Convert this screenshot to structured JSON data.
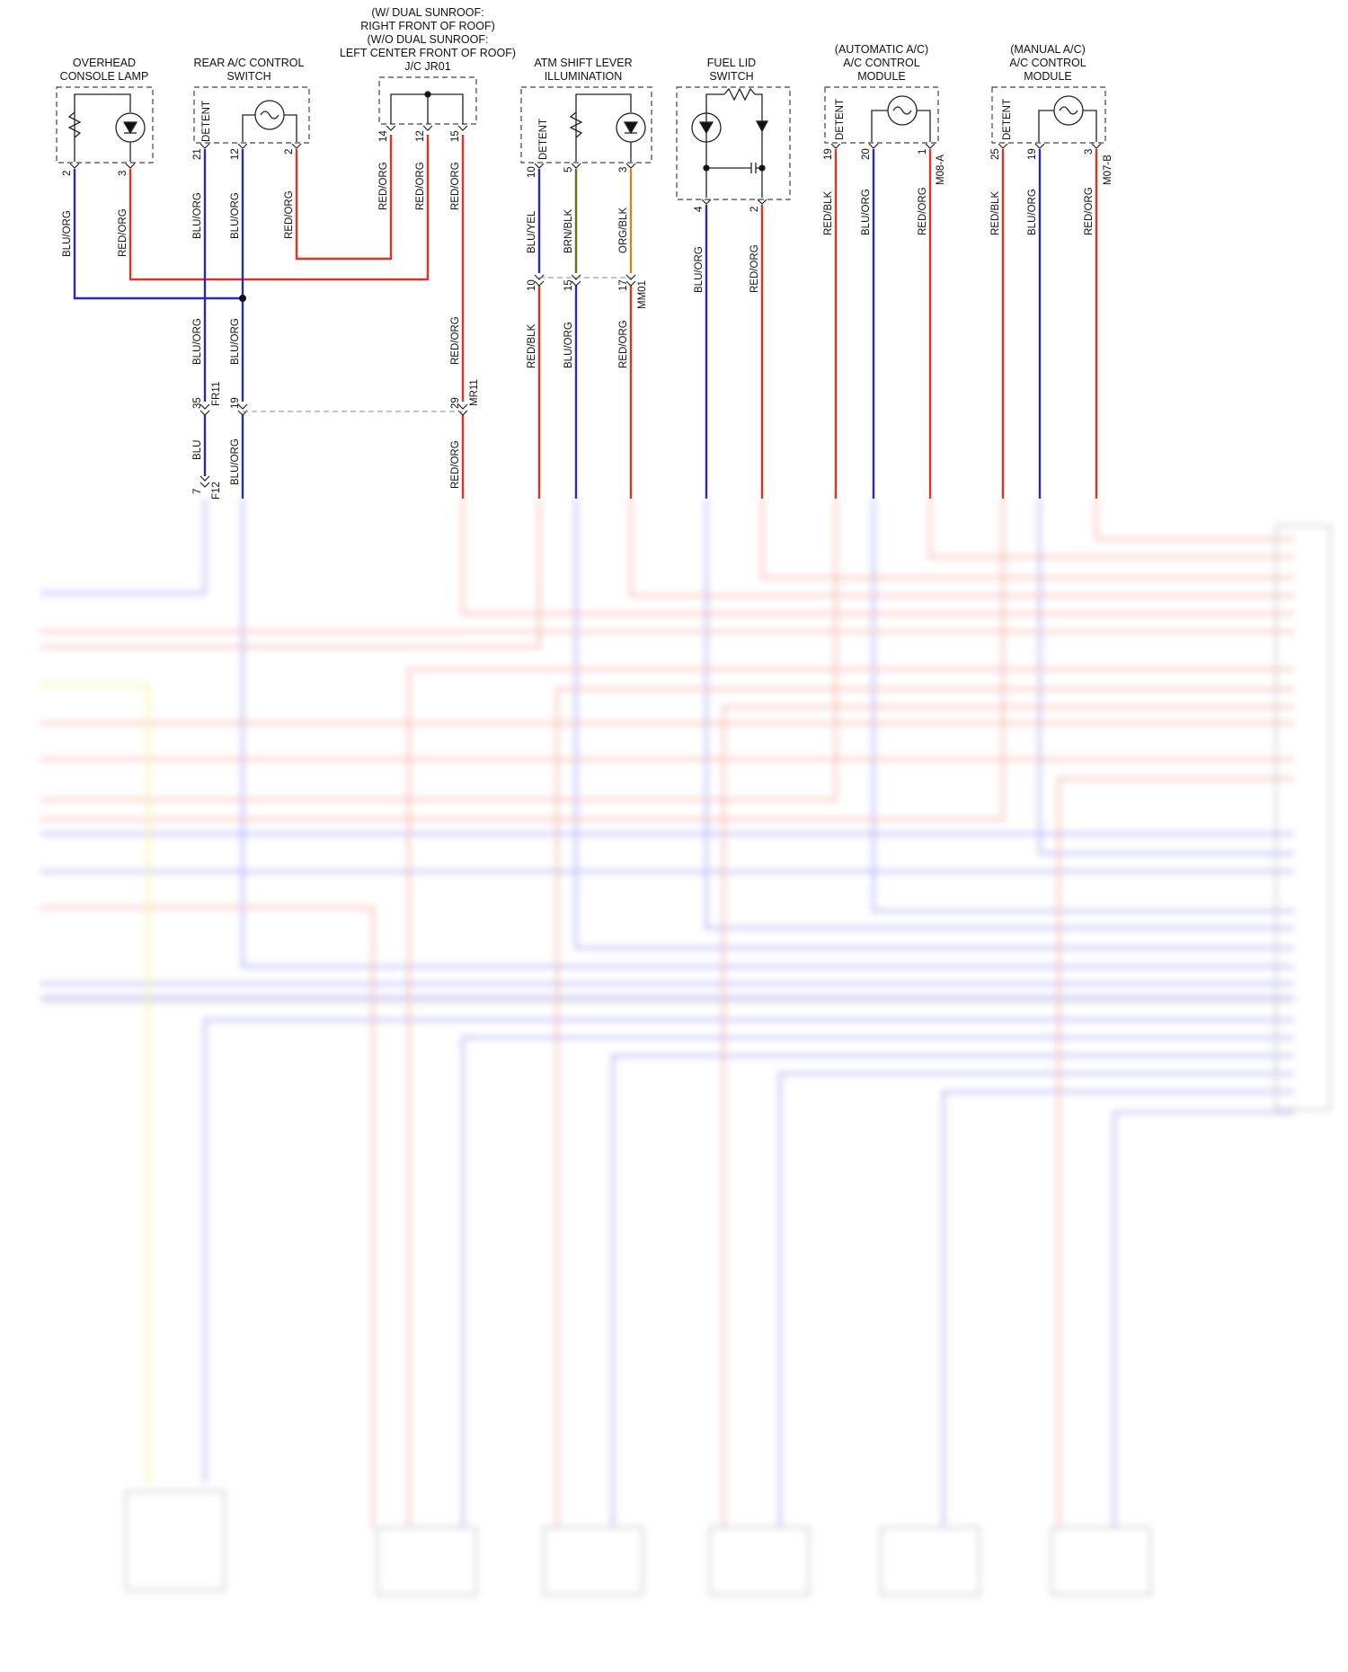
{
  "components": [
    {
      "id": "overhead",
      "title": [
        "OVERHEAD",
        "CONSOLE LAMP"
      ]
    },
    {
      "id": "rearac",
      "title": [
        "REAR A/C CONTROL",
        "SWITCH"
      ]
    },
    {
      "id": "jc",
      "title": [
        "(W/ DUAL SUNROOF:",
        "RIGHT FRONT OF ROOF)",
        "(W/O DUAL SUNROOF:",
        "LEFT CENTER FRONT OF ROOF)",
        "J/C JR01"
      ]
    },
    {
      "id": "atm",
      "title": [
        "ATM SHIFT LEVER",
        "ILLUMINATION"
      ]
    },
    {
      "id": "fuel",
      "title": [
        "FUEL LID",
        "SWITCH"
      ]
    },
    {
      "id": "autoac",
      "title": [
        "(AUTOMATIC A/C)",
        "A/C CONTROL",
        "MODULE"
      ]
    },
    {
      "id": "manac",
      "title": [
        "(MANUAL A/C)",
        "A/C CONTROL",
        "MODULE"
      ]
    }
  ],
  "detent_label": "DETENT",
  "pins": {
    "overhead": [
      "2",
      "3"
    ],
    "rearac": [
      "21",
      "12",
      "2"
    ],
    "jc": [
      "14",
      "12",
      "15"
    ],
    "atm": [
      "10",
      "5",
      "3"
    ],
    "fuel": [
      "4",
      "2"
    ],
    "autoac": [
      "19",
      "20",
      "1"
    ],
    "manac": [
      "25",
      "19",
      "3"
    ]
  },
  "connectors": {
    "M08A": "M08-A",
    "M07B": "M07-B",
    "MM01": "MM01",
    "FR11": "FR11",
    "MR11": "MR11",
    "F12": "F12"
  },
  "wire_labels": {
    "blu_org": "BLU/ORG",
    "red_org": "RED/ORG",
    "blu_yel": "BLU/YEL",
    "brn_blk": "BRN/BLK",
    "org_blk": "ORG/BLK",
    "red_blk": "RED/BLK",
    "blu": "BLU"
  },
  "inline_pins": {
    "mm01": [
      "10",
      "15",
      "17"
    ],
    "fr11": "35",
    "mid19": "19",
    "mr11": "29",
    "f12": "7"
  },
  "colors": {
    "blue": "#2a2ab8",
    "red": "#e0321e",
    "yellow": "#e8e23a",
    "olive": "#6b6b22",
    "orange": "#c98a1a",
    "gray": "#888888"
  }
}
